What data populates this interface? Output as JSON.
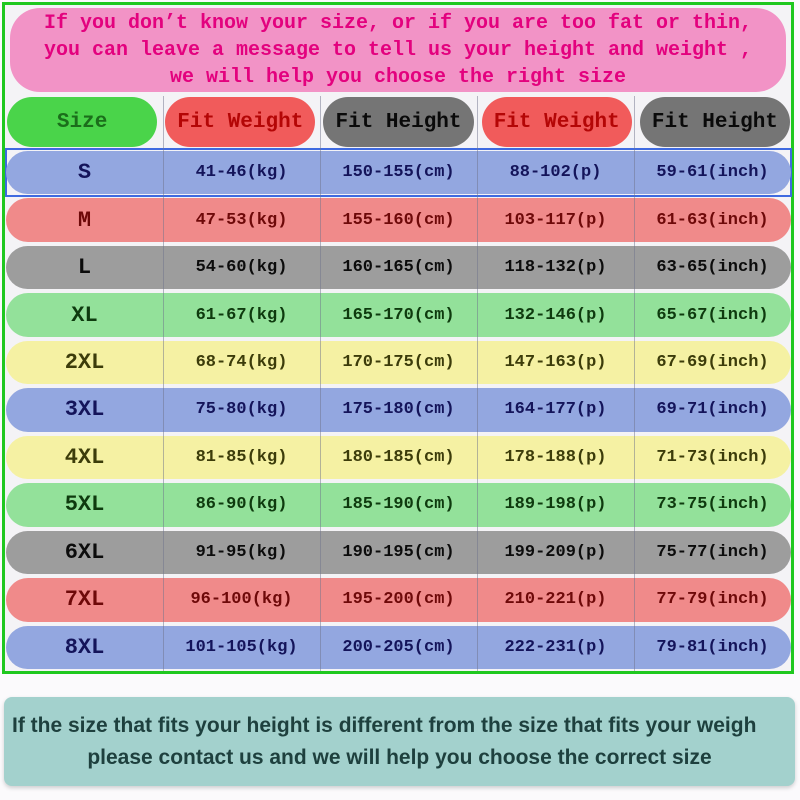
{
  "top_notice": {
    "lines": [
      "If you don’t know your size, or if you are too fat or thin,",
      "you can leave a message to tell us your height and weight ,",
      "we will help you choose the right size"
    ]
  },
  "chart_data": {
    "type": "table",
    "title": "Garment size chart",
    "columns": [
      {
        "label": "Size",
        "style": "green",
        "name": "size"
      },
      {
        "label": "Fit Weight",
        "style": "red",
        "name": "fit-weight-kg"
      },
      {
        "label": "Fit Height",
        "style": "gray",
        "name": "fit-height-cm"
      },
      {
        "label": "Fit Weight",
        "style": "red",
        "name": "fit-weight-p"
      },
      {
        "label": "Fit Height",
        "style": "gray",
        "name": "fit-height-inch"
      }
    ],
    "rows": [
      {
        "cells": [
          "S",
          "41-46(kg)",
          "150-155(cm)",
          "88-102(p)",
          "59-61(inch)"
        ],
        "style": "blue",
        "selected": true
      },
      {
        "cells": [
          "M",
          "47-53(kg)",
          "155-160(cm)",
          "103-117(p)",
          "61-63(inch)"
        ],
        "style": "red",
        "selected": false
      },
      {
        "cells": [
          "L",
          "54-60(kg)",
          "160-165(cm)",
          "118-132(p)",
          "63-65(inch)"
        ],
        "style": "gray",
        "selected": false
      },
      {
        "cells": [
          "XL",
          "61-67(kg)",
          "165-170(cm)",
          "132-146(p)",
          "65-67(inch)"
        ],
        "style": "green",
        "selected": false
      },
      {
        "cells": [
          "2XL",
          "68-74(kg)",
          "170-175(cm)",
          "147-163(p)",
          "67-69(inch)"
        ],
        "style": "yellow",
        "selected": false
      },
      {
        "cells": [
          "3XL",
          "75-80(kg)",
          "175-180(cm)",
          "164-177(p)",
          "69-71(inch)"
        ],
        "style": "blue",
        "selected": false
      },
      {
        "cells": [
          "4XL",
          "81-85(kg)",
          "180-185(cm)",
          "178-188(p)",
          "71-73(inch)"
        ],
        "style": "yellow",
        "selected": false
      },
      {
        "cells": [
          "5XL",
          "86-90(kg)",
          "185-190(cm)",
          "189-198(p)",
          "73-75(inch)"
        ],
        "style": "green",
        "selected": false
      },
      {
        "cells": [
          "6XL",
          "91-95(kg)",
          "190-195(cm)",
          "199-209(p)",
          "75-77(inch)"
        ],
        "style": "gray",
        "selected": false
      },
      {
        "cells": [
          "7XL",
          "96-100(kg)",
          "195-200(cm)",
          "210-221(p)",
          "77-79(inch)"
        ],
        "style": "red",
        "selected": false
      },
      {
        "cells": [
          "8XL",
          "101-105(kg)",
          "200-205(cm)",
          "222-231(p)",
          "79-81(inch)"
        ],
        "style": "blue",
        "selected": false
      }
    ]
  },
  "bottom_notice": {
    "lines": [
      "If the size that fits your height is different from the size that fits your weigh",
      "please contact us and we will help you choose the correct size"
    ]
  },
  "colors": {
    "frame_border": "#1fc81f",
    "top_notice_bg": "#f293c6",
    "top_notice_text": "#e3017e",
    "header_green": "#4ad44a",
    "header_red": "#f15b5b",
    "header_gray": "#757575",
    "row_blue": "#93a7e0",
    "row_red": "#f08a8a",
    "row_gray": "#9d9d9d",
    "row_green": "#93e19a",
    "row_yellow": "#f5f1a3",
    "selection_outline": "#3f6ae0",
    "bottom_notice_bg": "#a3d1cd",
    "bottom_notice_text": "#1e403e"
  }
}
